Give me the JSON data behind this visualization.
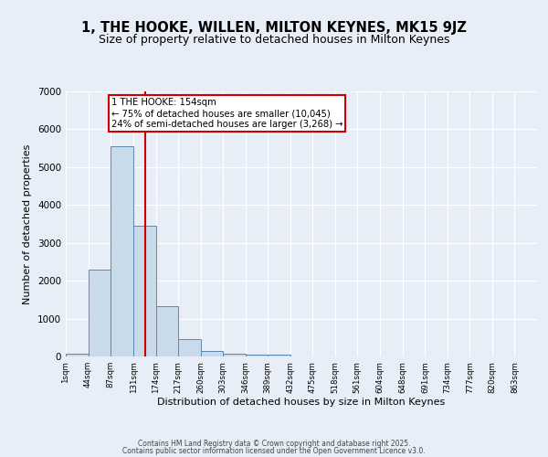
{
  "title": "1, THE HOOKE, WILLEN, MILTON KEYNES, MK15 9JZ",
  "subtitle": "Size of property relative to detached houses in Milton Keynes",
  "xlabel": "Distribution of detached houses by size in Milton Keynes",
  "ylabel": "Number of detached properties",
  "bar_edges": [
    1,
    44,
    87,
    131,
    174,
    217,
    260,
    303,
    346,
    389,
    432,
    475,
    518,
    561,
    604,
    648,
    691,
    734,
    777,
    820,
    863
  ],
  "bar_heights": [
    75,
    2300,
    5550,
    3450,
    1320,
    470,
    155,
    75,
    60,
    40,
    0,
    0,
    0,
    0,
    0,
    0,
    0,
    0,
    0,
    0
  ],
  "bar_color": "#c9daea",
  "bar_edge_color": "#5a8ab0",
  "bar_linewidth": 0.7,
  "red_line_x": 154,
  "red_line_color": "#cc0000",
  "annotation_text": "1 THE HOOKE: 154sqm\n← 75% of detached houses are smaller (10,045)\n24% of semi-detached houses are larger (3,268) →",
  "annotation_box_color": "#cc0000",
  "ylim": [
    0,
    7000
  ],
  "xlim": [
    1,
    906
  ],
  "tick_labels": [
    "1sqm",
    "44sqm",
    "87sqm",
    "131sqm",
    "174sqm",
    "217sqm",
    "260sqm",
    "303sqm",
    "346sqm",
    "389sqm",
    "432sqm",
    "475sqm",
    "518sqm",
    "561sqm",
    "604sqm",
    "648sqm",
    "691sqm",
    "734sqm",
    "777sqm",
    "820sqm",
    "863sqm"
  ],
  "tick_positions": [
    1,
    44,
    87,
    131,
    174,
    217,
    260,
    303,
    346,
    389,
    432,
    475,
    518,
    561,
    604,
    648,
    691,
    734,
    777,
    820,
    863
  ],
  "background_color": "#e8eef8",
  "grid_color": "#ffffff",
  "title_fontsize": 10.5,
  "subtitle_fontsize": 9,
  "footer_line1": "Contains HM Land Registry data © Crown copyright and database right 2025.",
  "footer_line2": "Contains public sector information licensed under the Open Government Licence v3.0."
}
